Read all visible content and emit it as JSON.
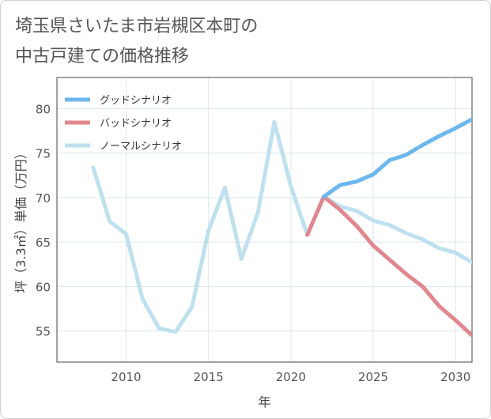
{
  "title_lines": [
    "埼玉県さいたま市岩槻区本町の",
    "中古戸建ての価格推移"
  ],
  "chart_data": {
    "type": "line",
    "title": "埼玉県さいたま市岩槻区本町の中古戸建ての価格推移",
    "xlabel": "年",
    "ylabel": "坪（3.3㎡）単価（万円）",
    "xlim": [
      2005.8,
      2031
    ],
    "ylim": [
      51.5,
      83.5
    ],
    "xticks": [
      2010,
      2015,
      2020,
      2025,
      2030
    ],
    "yticks": [
      55,
      60,
      65,
      70,
      75,
      80
    ],
    "grid": true,
    "legend_position": "top-left",
    "series": [
      {
        "name": "グッドシナリオ",
        "color": "#6cb8ee",
        "x": [
          2022,
          2023,
          2024,
          2025,
          2026,
          2027,
          2028,
          2029,
          2030,
          2031
        ],
        "values": [
          70.1,
          71.4,
          71.8,
          72.6,
          74.2,
          74.8,
          75.9,
          76.9,
          77.8,
          78.8
        ]
      },
      {
        "name": "バッドシナリオ",
        "color": "#e0878f",
        "x": [
          2021,
          2022,
          2023,
          2024,
          2025,
          2026,
          2027,
          2028,
          2029,
          2030,
          2031
        ],
        "values": [
          65.8,
          70.1,
          68.6,
          66.8,
          64.6,
          63.0,
          61.4,
          60.0,
          57.8,
          56.2,
          54.5
        ]
      },
      {
        "name": "ノーマルシナリオ",
        "color": "#bfe0ef",
        "x": [
          2008,
          2009,
          2010,
          2011,
          2012,
          2013,
          2014,
          2015,
          2016,
          2017,
          2018,
          2019,
          2020,
          2021,
          2022,
          2023,
          2024,
          2025,
          2026,
          2027,
          2028,
          2029,
          2030,
          2031
        ],
        "values": [
          73.4,
          67.3,
          65.9,
          58.6,
          55.3,
          54.9,
          57.7,
          66.3,
          71.1,
          63.1,
          68.3,
          78.5,
          71.3,
          65.8,
          70.1,
          69.0,
          68.5,
          67.4,
          66.9,
          66.0,
          65.3,
          64.3,
          63.8,
          62.7
        ]
      }
    ]
  }
}
